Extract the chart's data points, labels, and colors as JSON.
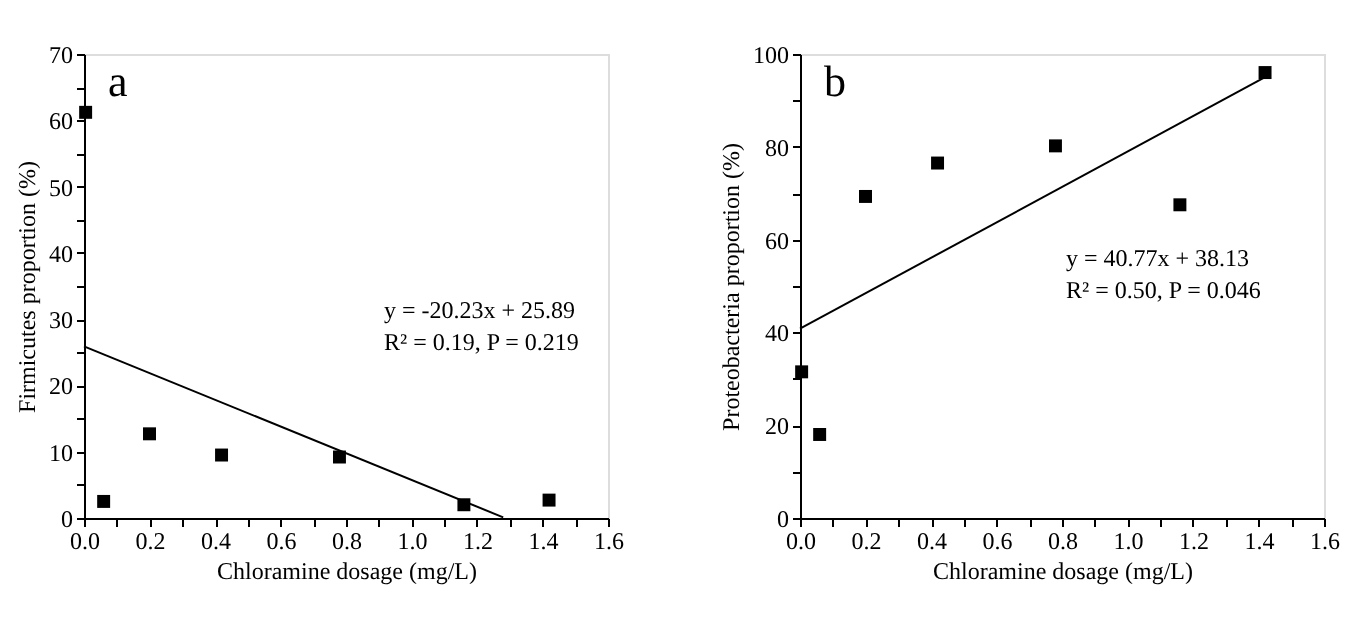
{
  "chart_data": [
    {
      "type": "scatter",
      "xlabel": "Chloramine dosage (mg/L)",
      "ylabel": "Firmicutes proportion (%)",
      "marker": "square",
      "grid": false,
      "annotations": [
        "a",
        "y = -20.23x + 25.89",
        "R² = 0.19, P = 0.219"
      ],
      "xlim": [
        0,
        1.6
      ],
      "ylim": [
        0,
        70
      ],
      "xticks": [
        {
          "value": 0,
          "label": "0.0"
        },
        {
          "value": 0.1,
          "label": null
        },
        {
          "value": 0.2,
          "label": "0.2"
        },
        {
          "value": 0.3,
          "label": null
        },
        {
          "value": 0.4,
          "label": "0.4"
        },
        {
          "value": 0.5,
          "label": null
        },
        {
          "value": 0.6,
          "label": "0.6"
        },
        {
          "value": 0.7,
          "label": null
        },
        {
          "value": 0.8,
          "label": "0.8"
        },
        {
          "value": 0.9,
          "label": null
        },
        {
          "value": 1.0,
          "label": "1.0"
        },
        {
          "value": 1.1,
          "label": null
        },
        {
          "value": 1.2,
          "label": "1.2"
        },
        {
          "value": 1.3,
          "label": null
        },
        {
          "value": 1.4,
          "label": "1.4"
        },
        {
          "value": 1.5,
          "label": null
        },
        {
          "value": 1.6,
          "label": "1.6"
        }
      ],
      "yticks": [
        0,
        {
          "value": 5,
          "label": null
        },
        10,
        {
          "value": 15,
          "label": null
        },
        20,
        {
          "value": 25,
          "label": null
        },
        30,
        {
          "value": 35,
          "label": null
        },
        40,
        {
          "value": 45,
          "label": null
        },
        50,
        {
          "value": 55,
          "label": null
        },
        60,
        {
          "value": 65,
          "label": null
        },
        70
      ],
      "series": [
        {
          "color": "#000000",
          "x": [
            0.005,
            0.06,
            0.2,
            0.42,
            0.78,
            1.16,
            1.42
          ],
          "values": [
            61.2,
            2.5,
            12.7,
            9.5,
            9.2,
            2.0,
            2.7
          ]
        },
        {
          "type": "line",
          "color": "#000000",
          "marker": "none",
          "line_style": "solid",
          "x": [
            0,
            1.28
          ],
          "values": [
            25.9,
            0.1
          ]
        }
      ]
    },
    {
      "type": "scatter",
      "xlabel": "Chloramine dosage (mg/L)",
      "ylabel": "Proteobacteria proportion (%)",
      "marker": "square",
      "grid": false,
      "annotations": [
        "b",
        "y = 40.77x + 38.13",
        "R² = 0.50, P = 0.046"
      ],
      "xlim": [
        0,
        1.6
      ],
      "ylim": [
        0,
        100
      ],
      "xticks": [
        {
          "value": 0,
          "label": "0.0"
        },
        {
          "value": 0.1,
          "label": null
        },
        {
          "value": 0.2,
          "label": "0.2"
        },
        {
          "value": 0.3,
          "label": null
        },
        {
          "value": 0.4,
          "label": "0.4"
        },
        {
          "value": 0.5,
          "label": null
        },
        {
          "value": 0.6,
          "label": "0.6"
        },
        {
          "value": 0.7,
          "label": null
        },
        {
          "value": 0.8,
          "label": "0.8"
        },
        {
          "value": 0.9,
          "label": null
        },
        {
          "value": 1.0,
          "label": "1.0"
        },
        {
          "value": 1.1,
          "label": null
        },
        {
          "value": 1.2,
          "label": "1.2"
        },
        {
          "value": 1.3,
          "label": null
        },
        {
          "value": 1.4,
          "label": "1.4"
        },
        {
          "value": 1.5,
          "label": null
        },
        {
          "value": 1.6,
          "label": "1.6"
        }
      ],
      "yticks": [
        0,
        {
          "value": 10,
          "label": null
        },
        20,
        {
          "value": 30,
          "label": null
        },
        40,
        {
          "value": 50,
          "label": null
        },
        60,
        {
          "value": 70,
          "label": null
        },
        80,
        {
          "value": 90,
          "label": null
        },
        100
      ],
      "series": [
        {
          "color": "#000000",
          "x": [
            0.005,
            0.06,
            0.2,
            0.42,
            0.78,
            1.16,
            1.42
          ],
          "values": [
            31.5,
            18.0,
            69.3,
            76.5,
            80.2,
            67.5,
            96.0
          ]
        },
        {
          "type": "line",
          "color": "#000000",
          "marker": "none",
          "line_style": "solid",
          "x": [
            0,
            1.42
          ],
          "values": [
            40.8,
            95.0
          ]
        }
      ]
    }
  ]
}
